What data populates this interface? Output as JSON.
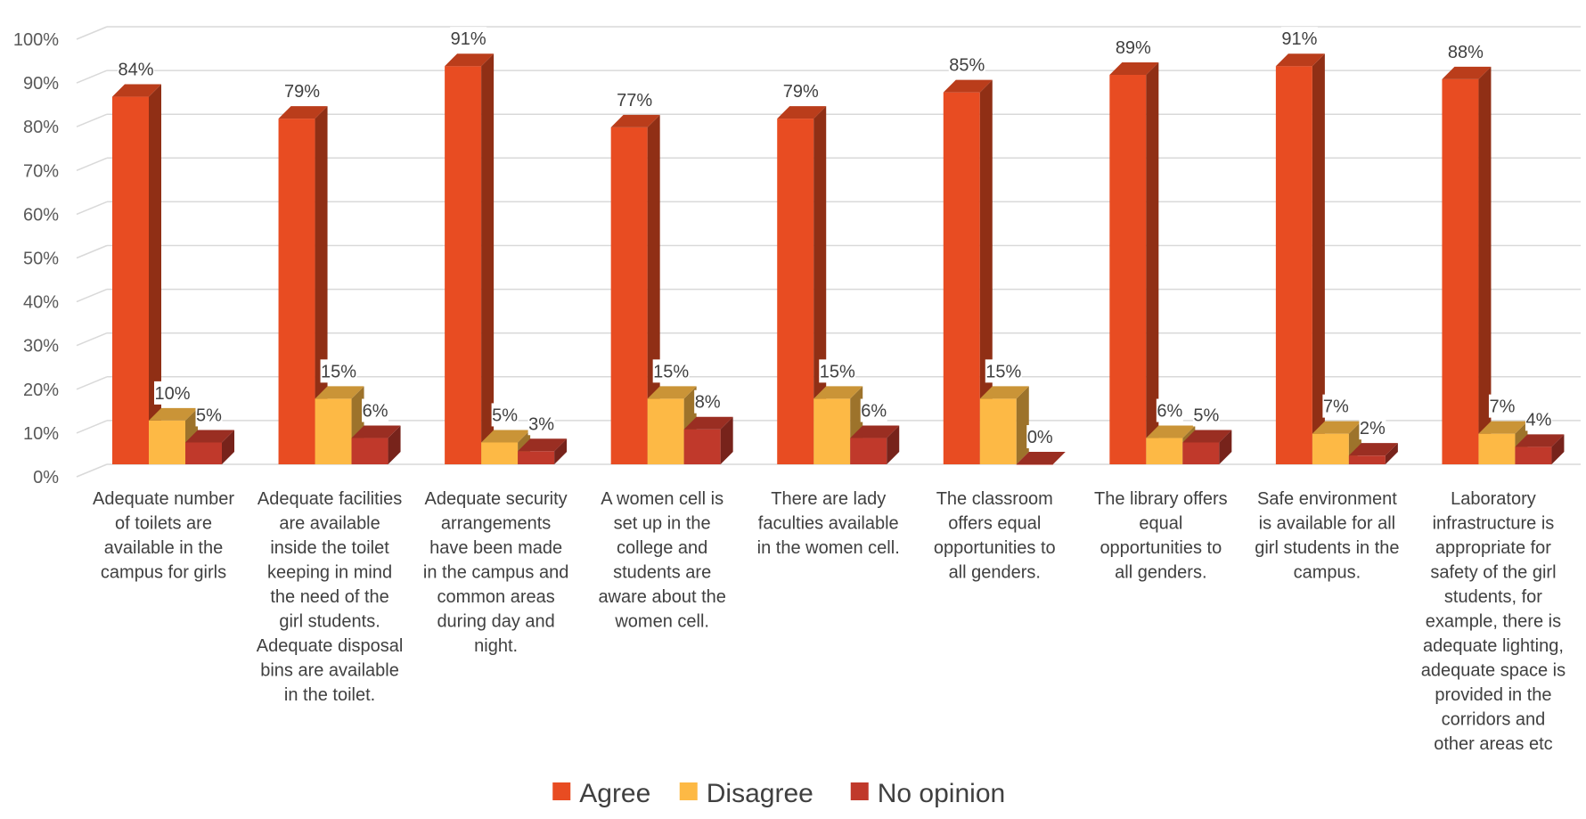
{
  "chart_data": {
    "type": "bar",
    "categories": [
      "Adequate number of toilets are available in the campus for girls",
      "Adequate facilities are available inside the toilet keeping in mind the need of the girl students. Adequate disposal bins are available in the toilet.",
      "Adequate security arrangements have been made in the campus and common areas during day and night.",
      "A women cell is set up in the college and students are aware about the women cell.",
      "There are lady faculties available in the women cell.",
      "The classroom offers equal opportunities to all genders.",
      "The library offers equal opportunities to all genders.",
      "Safe environment is available for all girl students in the campus.",
      "Laboratory infrastructure is appropriate for safety of the girl students, for example, there is adequate lighting, adequate space is provided in the corridors and other areas etc"
    ],
    "category_lines": [
      [
        "Adequate number",
        "of toilets are",
        "available in the",
        "campus for girls"
      ],
      [
        "Adequate facilities",
        "are available",
        "inside the toilet",
        "keeping in mind",
        "the need of the",
        "girl students.",
        "Adequate disposal",
        "bins are available",
        "in the toilet."
      ],
      [
        "Adequate security",
        "arrangements",
        "have been made",
        "in the campus and",
        "common areas",
        "during day and",
        "night."
      ],
      [
        "A women cell is",
        "set up in the",
        "college and",
        "students are",
        "aware about the",
        "women cell."
      ],
      [
        "There are lady",
        "faculties available",
        "in the women cell."
      ],
      [
        "The classroom",
        "offers equal",
        "opportunities to",
        "all genders."
      ],
      [
        "The library offers",
        "equal",
        "opportunities to",
        "all genders."
      ],
      [
        "Safe environment",
        "is available for all",
        "girl students in the",
        "campus."
      ],
      [
        "Laboratory",
        "infrastructure is",
        "appropriate for",
        "safety of the girl",
        "students, for",
        "example, there is",
        "adequate lighting,",
        "adequate space is",
        "provided in the",
        "corridors and",
        "other areas etc"
      ]
    ],
    "series": [
      {
        "name": "Agree",
        "color": "#E84C22",
        "values": [
          84,
          79,
          91,
          77,
          79,
          85,
          89,
          91,
          88
        ],
        "labels": [
          "84%",
          "79%",
          "91%",
          "77%",
          "79%",
          "85%",
          "89%",
          "91%",
          "88%"
        ]
      },
      {
        "name": "Disagree",
        "color": "#FDB945",
        "values": [
          10,
          15,
          5,
          15,
          15,
          15,
          6,
          7,
          7
        ],
        "labels": [
          "10%",
          "15%",
          "5%",
          "15%",
          "15%",
          "15%",
          "6%",
          "7%",
          "7%"
        ]
      },
      {
        "name": "No opinion",
        "color": "#C0392B",
        "values": [
          5,
          6,
          3,
          8,
          6,
          0,
          5,
          2,
          4
        ],
        "labels": [
          "5%",
          "6%",
          "3%",
          "8%",
          "6%",
          "0%",
          "5%",
          "2%",
          "4%"
        ]
      }
    ],
    "y_ticks": [
      "0%",
      "10%",
      "20%",
      "30%",
      "40%",
      "50%",
      "60%",
      "70%",
      "80%",
      "90%",
      "100%"
    ],
    "ylim": [
      0,
      100
    ],
    "grid": true,
    "legend_position": "bottom",
    "title": "",
    "xlabel": "",
    "ylabel": ""
  }
}
